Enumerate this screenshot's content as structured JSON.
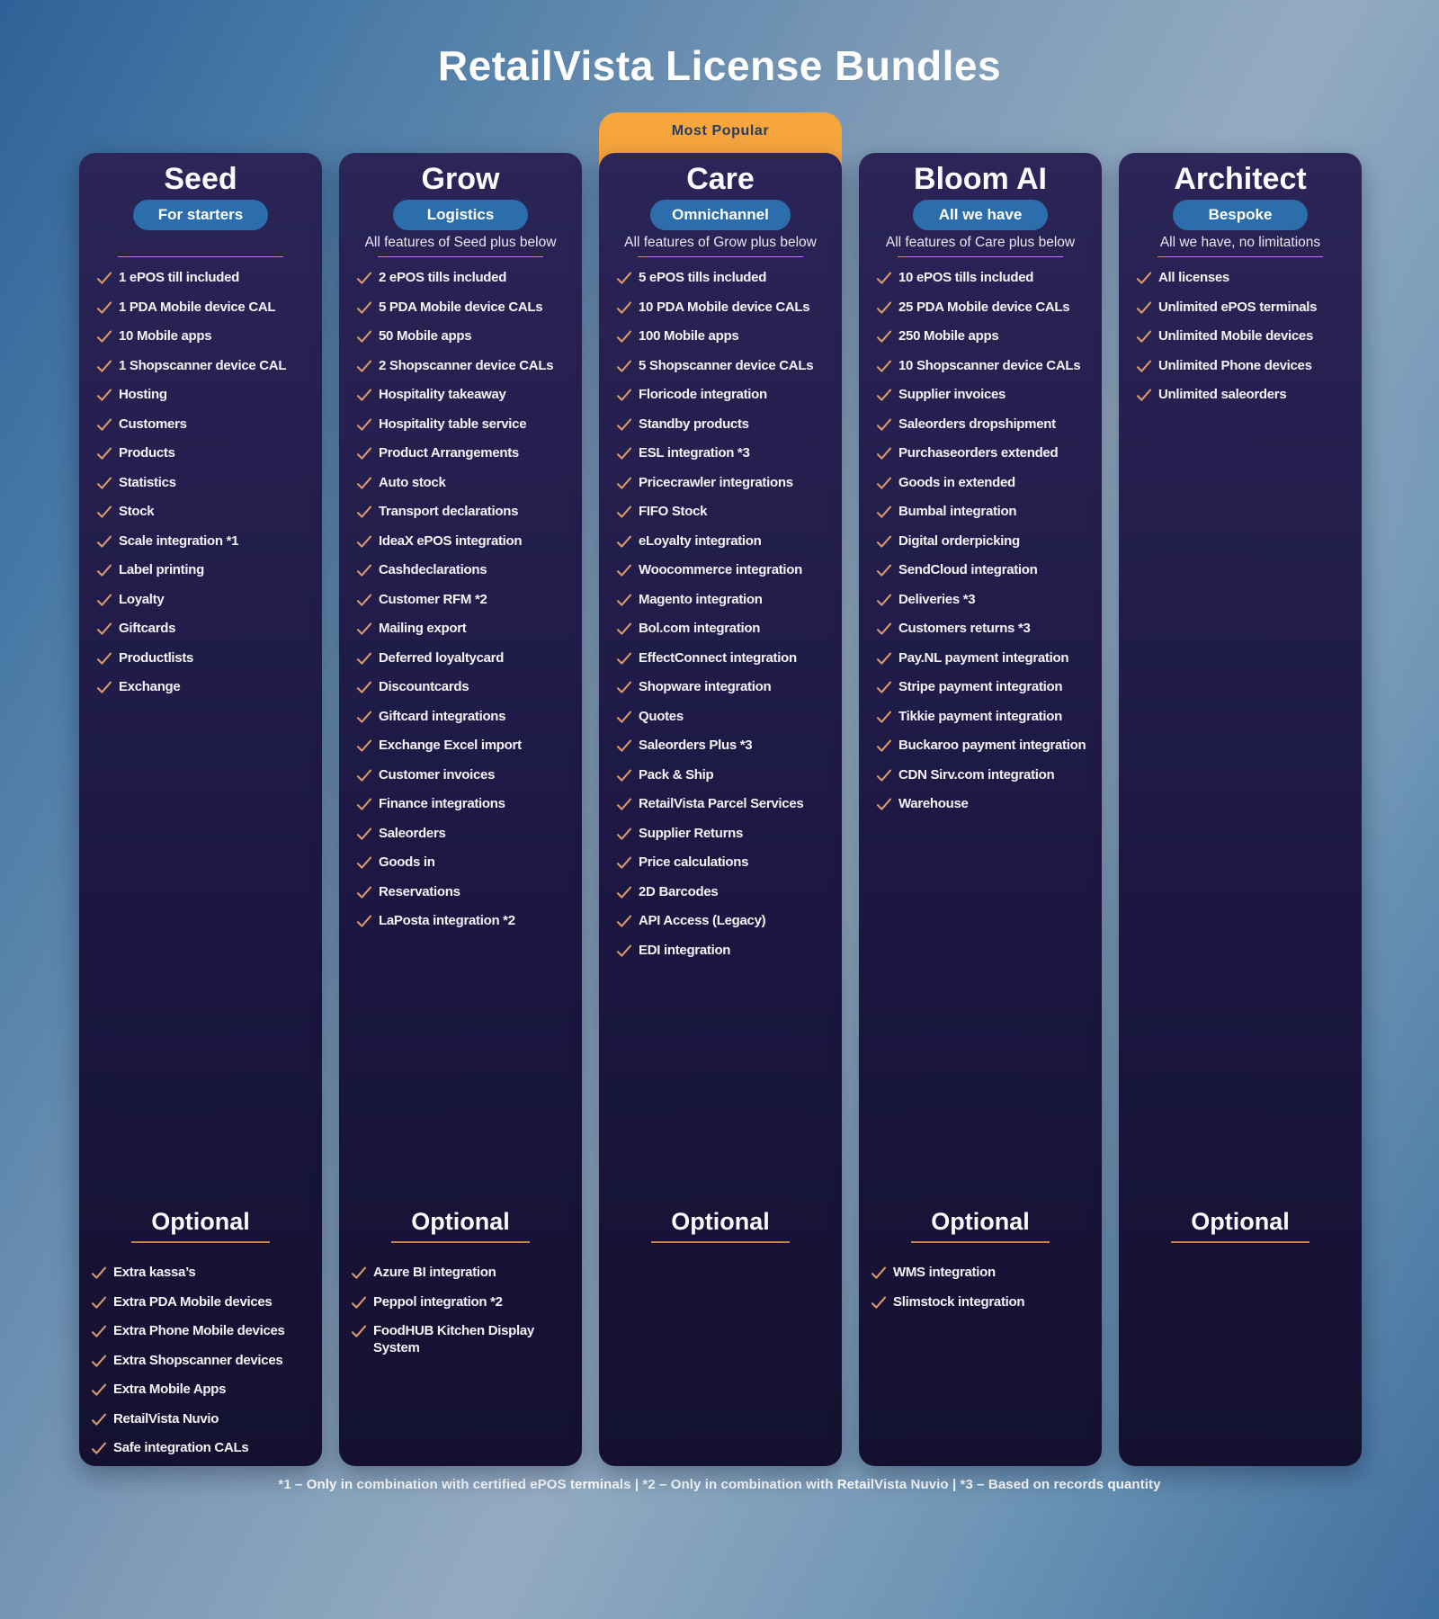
{
  "page": {
    "title": "RetailVista License Bundles",
    "most_popular_label": "Most Popular",
    "optional_heading": "Optional",
    "footnote": "*1 – Only in combination with certified ePOS terminals | *2 – Only in combination with RetailVista Nuvio | *3 – Based on records quantity"
  },
  "colors": {
    "accent_orange": "#F7A53D",
    "check_orange": "#D9996A",
    "pill_blue": "#2C6EAB",
    "divider_orange": "#D98D58",
    "underline_orange": "#C9804B",
    "card_navy_top": "#2B2558",
    "card_navy_bottom": "#141130"
  },
  "plans": [
    {
      "id": "seed",
      "name": "Seed",
      "badge": "For starters",
      "subtitle": "",
      "most_popular": false,
      "features": [
        "1 ePOS till included",
        "1 PDA Mobile device CAL",
        "10 Mobile apps",
        "1 Shopscanner device CAL",
        "Hosting",
        "Customers",
        "Products",
        "Statistics",
        "Stock",
        "Scale integration *1",
        "Label printing",
        "Loyalty",
        "Giftcards",
        "Productlists",
        "Exchange"
      ],
      "optional": [
        "Extra kassa’s",
        "Extra PDA Mobile devices",
        "Extra Phone Mobile devices",
        "Extra Shopscanner devices",
        "Extra Mobile Apps",
        "RetailVista Nuvio",
        "Safe integration CALs"
      ]
    },
    {
      "id": "grow",
      "name": "Grow",
      "badge": "Logistics",
      "subtitle": "All features of Seed plus below",
      "most_popular": false,
      "features": [
        "2 ePOS tills included",
        "5 PDA Mobile device CALs",
        "50 Mobile apps",
        "2 Shopscanner device CALs",
        "Hospitality takeaway",
        "Hospitality table service",
        "Product Arrangements",
        "Auto stock",
        "Transport declarations",
        "IdeaX ePOS integration",
        "Cashdeclarations",
        "Customer RFM *2",
        "Mailing export",
        "Deferred loyaltycard",
        "Discountcards",
        "Giftcard integrations",
        "Exchange Excel import",
        "Customer invoices",
        "Finance integrations",
        "Saleorders",
        "Goods in",
        "Reservations",
        "LaPosta integration *2"
      ],
      "optional": [
        "Azure BI integration",
        "Peppol integration *2",
        "FoodHUB Kitchen Display System"
      ]
    },
    {
      "id": "care",
      "name": "Care",
      "badge": "Omnichannel",
      "subtitle": "All features of Grow plus below",
      "most_popular": true,
      "features": [
        "5 ePOS tills included",
        "10 PDA Mobile device CALs",
        "100 Mobile apps",
        "5 Shopscanner device CALs",
        "Floricode integration",
        "Standby products",
        "ESL integration *3",
        "Pricecrawler integrations",
        "FIFO Stock",
        "eLoyalty integration",
        "Woocommerce integration",
        "Magento integration",
        "Bol.com integration",
        "EffectConnect integration",
        "Shopware integration",
        "Quotes",
        "Saleorders Plus *3",
        "Pack & Ship",
        "RetailVista Parcel Services",
        "Supplier Returns",
        "Price calculations",
        "2D Barcodes",
        "API Access (Legacy)",
        "EDI integration"
      ],
      "optional": []
    },
    {
      "id": "bloom-ai",
      "name": "Bloom AI",
      "badge": "All we have",
      "subtitle": "All features of Care plus below",
      "most_popular": false,
      "features": [
        "10 ePOS tills included",
        "25 PDA Mobile device CALs",
        "250 Mobile apps",
        "10 Shopscanner device CALs",
        "Supplier invoices",
        "Saleorders dropshipment",
        "Purchaseorders extended",
        "Goods in extended",
        "Bumbal integration",
        "Digital orderpicking",
        "SendCloud integration",
        "Deliveries *3",
        "Customers returns *3",
        "Pay.NL payment integration",
        "Stripe payment integration",
        "Tikkie payment integration",
        "Buckaroo payment integration",
        "CDN Sirv.com integration",
        "Warehouse"
      ],
      "optional": [
        "WMS integration",
        "Slimstock integration"
      ]
    },
    {
      "id": "architect",
      "name": "Architect",
      "badge": "Bespoke",
      "subtitle": "All we have, no limitations",
      "most_popular": false,
      "features": [
        "All licenses",
        "Unlimited ePOS terminals",
        "Unlimited Mobile devices",
        "Unlimited Phone devices",
        "Unlimited saleorders"
      ],
      "optional": []
    }
  ]
}
